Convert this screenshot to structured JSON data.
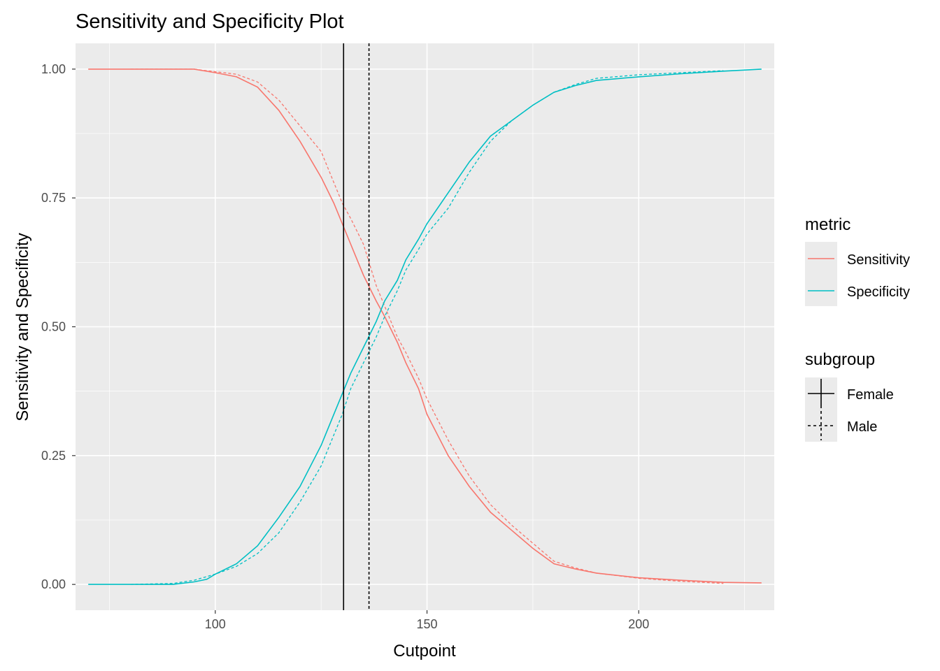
{
  "chart_data": {
    "type": "line",
    "title": "Sensitivity and Specificity Plot",
    "xlabel": "Cutpoint",
    "ylabel": "Sensitivity and Specificity",
    "xlim": [
      67,
      232
    ],
    "ylim": [
      -0.05,
      1.05
    ],
    "x_ticks": [
      "100",
      "150",
      "200"
    ],
    "y_ticks": [
      "0.00",
      "0.25",
      "0.50",
      "0.75",
      "1.00"
    ],
    "grid": true,
    "legend_position": "right",
    "legends": [
      {
        "title": "metric",
        "entries": [
          {
            "label": "Sensitivity",
            "color": "#F8766D"
          },
          {
            "label": "Specificity",
            "color": "#00BFC4"
          }
        ]
      },
      {
        "title": "subgroup",
        "entries": [
          {
            "label": "Female",
            "linetype": "solid"
          },
          {
            "label": "Male",
            "linetype": "dashed"
          }
        ]
      }
    ],
    "vlines": [
      {
        "subgroup": "Female",
        "x": 130.3,
        "linetype": "solid"
      },
      {
        "subgroup": "Male",
        "x": 136.3,
        "linetype": "dashed"
      }
    ],
    "series": [
      {
        "metric": "Sensitivity",
        "subgroup": "Female",
        "color": "#F8766D",
        "linetype": "solid",
        "x": [
          70,
          80,
          90,
          95,
          100,
          105,
          110,
          115,
          120,
          125,
          128,
          130,
          132,
          135,
          138,
          140,
          143,
          145,
          148,
          150,
          155,
          160,
          165,
          170,
          175,
          180,
          185,
          190,
          200,
          210,
          220,
          229
        ],
        "y": [
          1.0,
          1.0,
          1.0,
          1.0,
          0.993,
          0.985,
          0.965,
          0.92,
          0.86,
          0.79,
          0.74,
          0.7,
          0.66,
          0.6,
          0.55,
          0.52,
          0.47,
          0.43,
          0.38,
          0.33,
          0.25,
          0.19,
          0.14,
          0.105,
          0.07,
          0.04,
          0.03,
          0.022,
          0.013,
          0.008,
          0.004,
          0.003
        ]
      },
      {
        "metric": "Sensitivity",
        "subgroup": "Male",
        "color": "#F8766D",
        "linetype": "dashed",
        "x": [
          80,
          90,
          95,
          100,
          105,
          110,
          115,
          120,
          125,
          128,
          130,
          132,
          135,
          138,
          140,
          143,
          145,
          148,
          150,
          155,
          160,
          165,
          170,
          175,
          180,
          185,
          190,
          200,
          210,
          220
        ],
        "y": [
          1.0,
          1.0,
          1.0,
          0.995,
          0.99,
          0.975,
          0.94,
          0.89,
          0.84,
          0.78,
          0.74,
          0.71,
          0.66,
          0.58,
          0.54,
          0.48,
          0.45,
          0.4,
          0.36,
          0.28,
          0.21,
          0.155,
          0.115,
          0.08,
          0.045,
          0.032,
          0.022,
          0.012,
          0.006,
          0.002
        ]
      },
      {
        "metric": "Specificity",
        "subgroup": "Female",
        "color": "#00BFC4",
        "linetype": "solid",
        "x": [
          70,
          80,
          90,
          95,
          98,
          100,
          105,
          110,
          115,
          120,
          125,
          128,
          130,
          132,
          135,
          138,
          140,
          143,
          145,
          148,
          150,
          155,
          160,
          165,
          170,
          175,
          180,
          185,
          190,
          200,
          210,
          220,
          229
        ],
        "y": [
          0.0,
          0.0,
          0.0,
          0.005,
          0.01,
          0.02,
          0.04,
          0.075,
          0.13,
          0.19,
          0.27,
          0.33,
          0.37,
          0.41,
          0.46,
          0.51,
          0.55,
          0.59,
          0.63,
          0.67,
          0.7,
          0.76,
          0.82,
          0.87,
          0.9,
          0.93,
          0.955,
          0.968,
          0.978,
          0.985,
          0.991,
          0.996,
          1.0
        ]
      },
      {
        "metric": "Specificity",
        "subgroup": "Male",
        "color": "#00BFC4",
        "linetype": "dashed",
        "x": [
          80,
          90,
          95,
          100,
          105,
          110,
          115,
          120,
          125,
          128,
          130,
          132,
          135,
          138,
          140,
          143,
          145,
          148,
          150,
          155,
          160,
          165,
          170,
          175,
          180,
          185,
          190,
          200,
          210,
          220
        ],
        "y": [
          0.0,
          0.002,
          0.008,
          0.02,
          0.035,
          0.06,
          0.1,
          0.16,
          0.23,
          0.29,
          0.33,
          0.38,
          0.43,
          0.48,
          0.52,
          0.57,
          0.61,
          0.65,
          0.68,
          0.73,
          0.8,
          0.86,
          0.9,
          0.93,
          0.955,
          0.97,
          0.982,
          0.989,
          0.993,
          0.997
        ]
      }
    ]
  }
}
